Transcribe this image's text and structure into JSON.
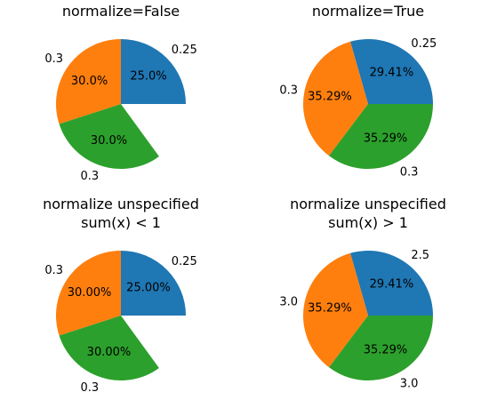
{
  "chart_data": [
    {
      "type": "pie",
      "title_lines": [
        "normalize=False"
      ],
      "categories": [
        "0.25",
        "0.3",
        "0.3"
      ],
      "values": [
        0.25,
        0.3,
        0.3
      ],
      "labels": [
        "0.25",
        "0.3",
        "0.3"
      ],
      "autopct": [
        "25.0%",
        "30.0%",
        "30.0%"
      ],
      "colors": [
        "#1f77b4",
        "#ff7f0e",
        "#2ca02c"
      ],
      "startangle": 0,
      "normalize": false
    },
    {
      "type": "pie",
      "title_lines": [
        "normalize=True"
      ],
      "categories": [
        "0.25",
        "0.3",
        "0.3"
      ],
      "values": [
        0.25,
        0.3,
        0.3
      ],
      "labels": [
        "0.25",
        "0.3",
        "0.3"
      ],
      "autopct": [
        "29.41%",
        "35.29%",
        "35.29%"
      ],
      "colors": [
        "#1f77b4",
        "#ff7f0e",
        "#2ca02c"
      ],
      "startangle": 0,
      "normalize": true
    },
    {
      "type": "pie",
      "title_lines": [
        "normalize unspecified",
        "sum(x) < 1"
      ],
      "categories": [
        "0.25",
        "0.3",
        "0.3"
      ],
      "values": [
        0.25,
        0.3,
        0.3
      ],
      "labels": [
        "0.25",
        "0.3",
        "0.3"
      ],
      "autopct": [
        "25.00%",
        "30.00%",
        "30.00%"
      ],
      "colors": [
        "#1f77b4",
        "#ff7f0e",
        "#2ca02c"
      ],
      "startangle": 0,
      "normalize": false
    },
    {
      "type": "pie",
      "title_lines": [
        "normalize unspecified",
        "sum(x) > 1"
      ],
      "categories": [
        "2.5",
        "3.0",
        "3.0"
      ],
      "values": [
        2.5,
        3.0,
        3.0
      ],
      "labels": [
        "2.5",
        "3.0",
        "3.0"
      ],
      "autopct": [
        "29.41%",
        "35.29%",
        "35.29%"
      ],
      "colors": [
        "#1f77b4",
        "#ff7f0e",
        "#2ca02c"
      ],
      "startangle": 0,
      "normalize": true
    }
  ]
}
